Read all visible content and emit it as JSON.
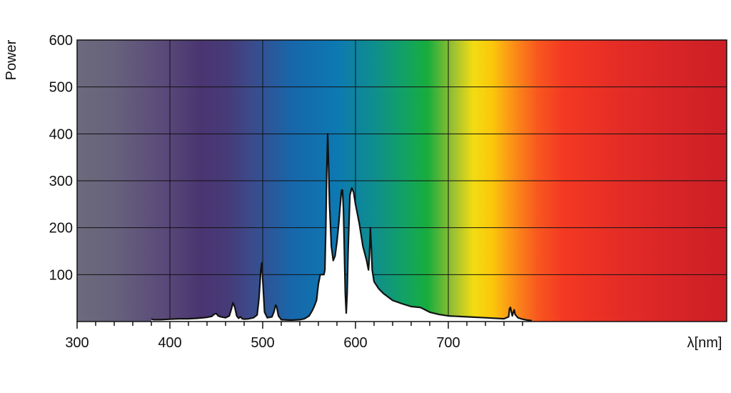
{
  "chart_data": {
    "type": "area",
    "ylabel": "Power",
    "xlabel": "λ[nm]",
    "xlim": [
      300,
      1000
    ],
    "ylim": [
      0,
      600
    ],
    "x_ticks": [
      300,
      400,
      500,
      600,
      700
    ],
    "x_tick_labels": [
      "300",
      "400",
      "500",
      "600",
      "700"
    ],
    "y_ticks": [
      100,
      200,
      300,
      400,
      500,
      600
    ],
    "y_tick_labels": [
      "100",
      "200",
      "300",
      "400",
      "500",
      "600"
    ],
    "grid": true,
    "background": "visible spectrum color gradient",
    "series": [
      {
        "x": [
          380,
          382,
          390,
          400,
          410,
          420,
          430,
          440,
          445,
          448,
          450,
          452,
          455,
          460,
          464,
          466,
          468,
          470,
          472,
          474,
          476,
          478,
          480,
          485,
          490,
          494,
          496,
          498,
          499,
          500,
          502,
          505,
          510,
          512,
          514,
          515,
          517,
          520,
          530,
          540,
          545,
          550,
          553,
          555,
          558,
          560,
          562,
          564,
          566,
          567,
          568,
          569,
          570,
          571,
          572,
          574,
          576,
          578,
          580,
          582,
          584,
          585,
          586,
          587,
          588,
          589,
          590,
          591,
          592,
          594,
          596,
          598,
          600,
          604,
          608,
          612,
          614,
          615,
          616,
          617,
          618,
          620,
          625,
          630,
          640,
          650,
          660,
          670,
          680,
          690,
          700,
          720,
          740,
          760,
          765,
          766,
          767,
          768,
          769,
          770,
          771,
          772,
          775,
          780,
          785,
          790
        ],
        "y": [
          6,
          4,
          4,
          5,
          6,
          6,
          7,
          9,
          11,
          16,
          17,
          12,
          10,
          8,
          12,
          25,
          40,
          30,
          12,
          7,
          10,
          6,
          5,
          6,
          8,
          14,
          50,
          110,
          125,
          90,
          20,
          8,
          10,
          20,
          35,
          32,
          12,
          4,
          3,
          4,
          6,
          12,
          22,
          30,
          45,
          80,
          100,
          100,
          100,
          110,
          200,
          320,
          400,
          330,
          250,
          160,
          130,
          140,
          170,
          210,
          260,
          280,
          280,
          240,
          150,
          60,
          18,
          60,
          150,
          270,
          285,
          275,
          250,
          210,
          160,
          130,
          110,
          140,
          200,
          160,
          110,
          85,
          70,
          60,
          45,
          38,
          32,
          30,
          20,
          15,
          12,
          10,
          8,
          6,
          10,
          28,
          30,
          20,
          12,
          20,
          25,
          15,
          8,
          5,
          3,
          2
        ]
      }
    ]
  }
}
